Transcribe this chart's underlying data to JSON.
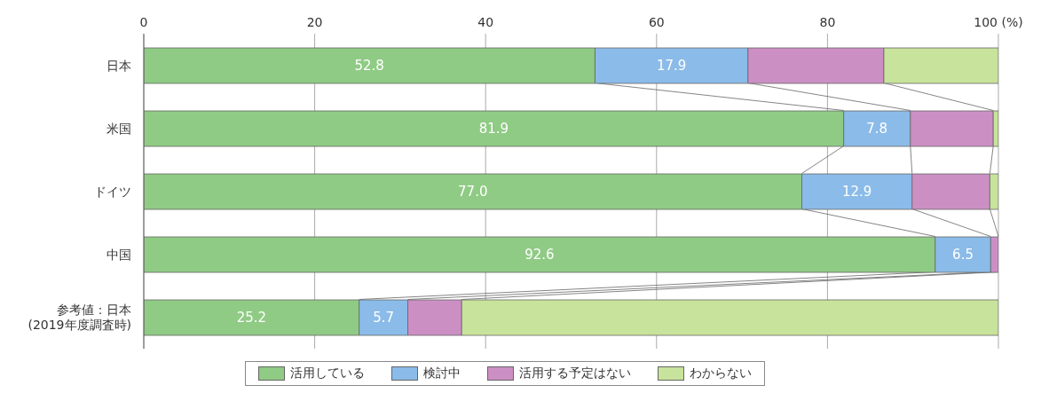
{
  "chart_data": {
    "type": "bar",
    "orientation": "horizontal",
    "stacked": true,
    "categories": [
      "日本",
      "米国",
      "ドイツ",
      "中国",
      "参考値：日本\n(2019年度調査時)"
    ],
    "series": [
      {
        "name": "活用している",
        "color": "#8fcb84",
        "values": [
          52.8,
          81.9,
          77.0,
          92.6,
          25.2
        ],
        "value_labels": [
          "52.8",
          "81.9",
          "77.0",
          "92.6",
          "25.2"
        ]
      },
      {
        "name": "検討中",
        "color": "#8bbbe8",
        "values": [
          17.9,
          7.8,
          12.9,
          6.5,
          5.7
        ],
        "value_labels": [
          "17.9",
          "7.8",
          "12.9",
          "6.5",
          "5.7"
        ]
      },
      {
        "name": "活用する予定はない",
        "color": "#cc8fc4",
        "values": [
          15.9,
          9.7,
          9.1,
          0.9,
          6.3
        ]
      },
      {
        "name": "わからない",
        "color": "#c8e39c",
        "values": [
          13.4,
          0.6,
          1.0,
          0,
          62.8
        ]
      }
    ],
    "xlim": [
      0,
      100
    ],
    "xticks": [
      0,
      20,
      40,
      60,
      80,
      {
        "value": 100,
        "label": "100 (%)"
      }
    ],
    "grid": "x",
    "legend": "bottom"
  }
}
